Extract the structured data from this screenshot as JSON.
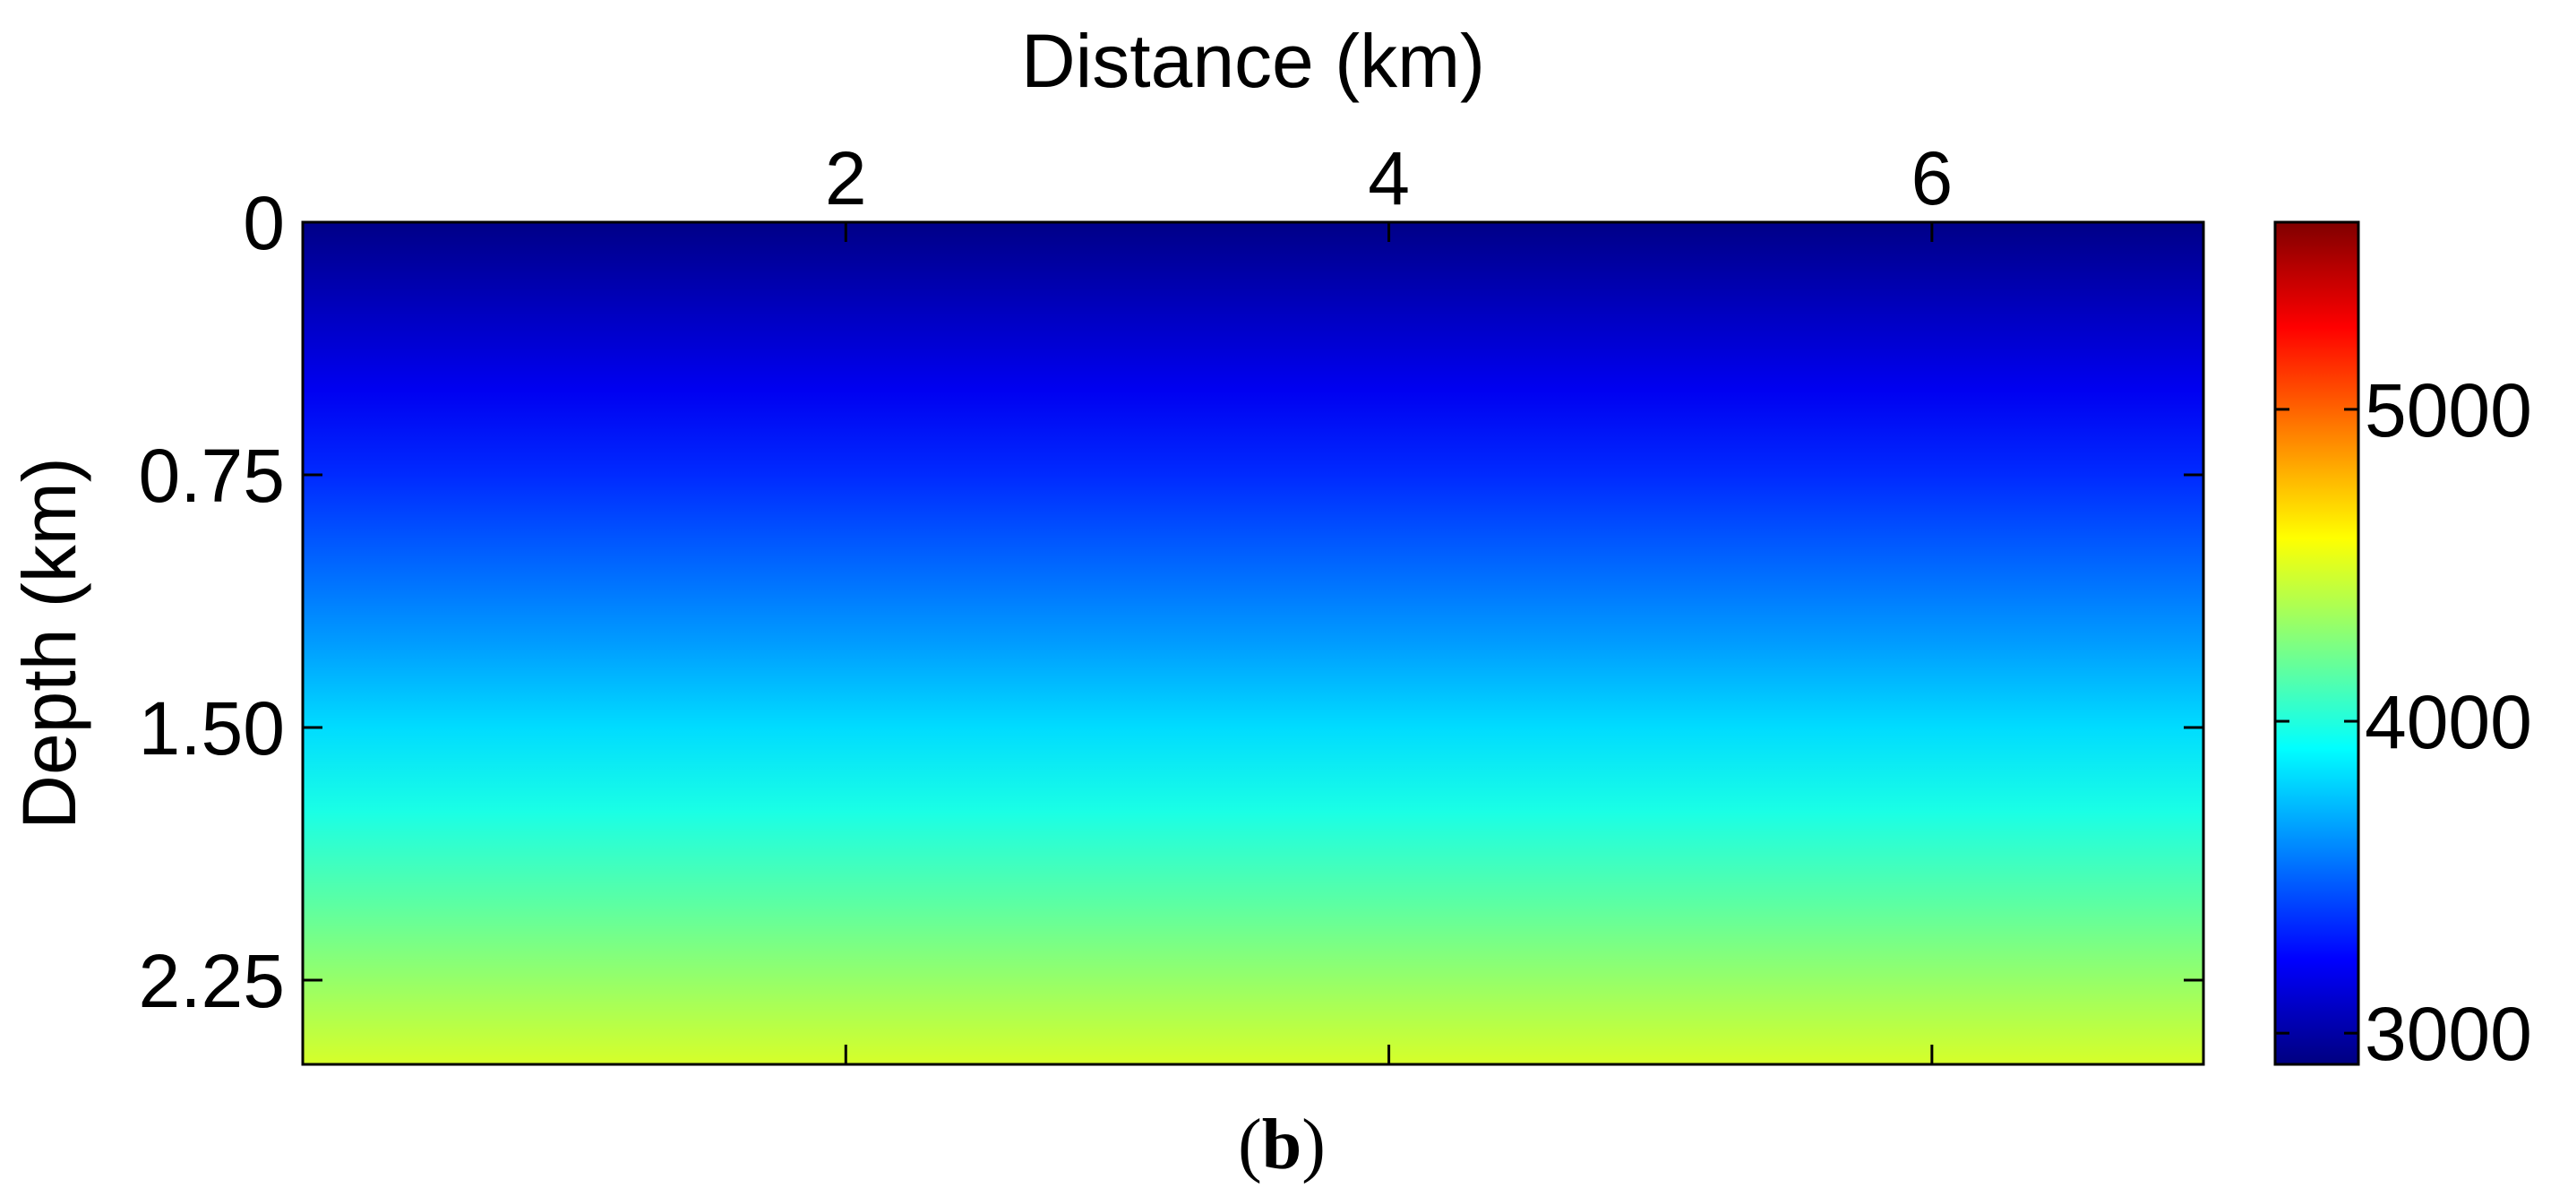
{
  "chart_data": {
    "type": "heatmap",
    "xlabel": "Distance (km)",
    "ylabel": "Depth (km)",
    "x_range": [
      0,
      7
    ],
    "y_range": [
      0,
      2.5
    ],
    "y_reversed": true,
    "x_ticks": [
      2,
      4,
      6
    ],
    "x_tick_labels": [
      "2",
      "4",
      "6"
    ],
    "y_ticks": [
      0,
      0.75,
      1.5,
      2.25
    ],
    "y_tick_labels": [
      "0",
      "0.75",
      "1.50",
      "2.25"
    ],
    "colormap": "jet",
    "colorbar": {
      "range": [
        2900,
        5600
      ],
      "ticks": [
        3000,
        4000,
        5000
      ],
      "tick_labels": [
        "3000",
        "4000",
        "5000"
      ]
    },
    "velocity_profile": {
      "depth_km": [
        0,
        0.25,
        0.5,
        0.75,
        1.0,
        1.25,
        1.5,
        1.75,
        2.0,
        2.25,
        2.5
      ],
      "value": [
        2920,
        3060,
        3200,
        3350,
        3500,
        3650,
        3820,
        3980,
        4140,
        4310,
        4480
      ]
    },
    "grid": false
  },
  "caption": {
    "open": "(",
    "letter": "b",
    "close": ")"
  }
}
